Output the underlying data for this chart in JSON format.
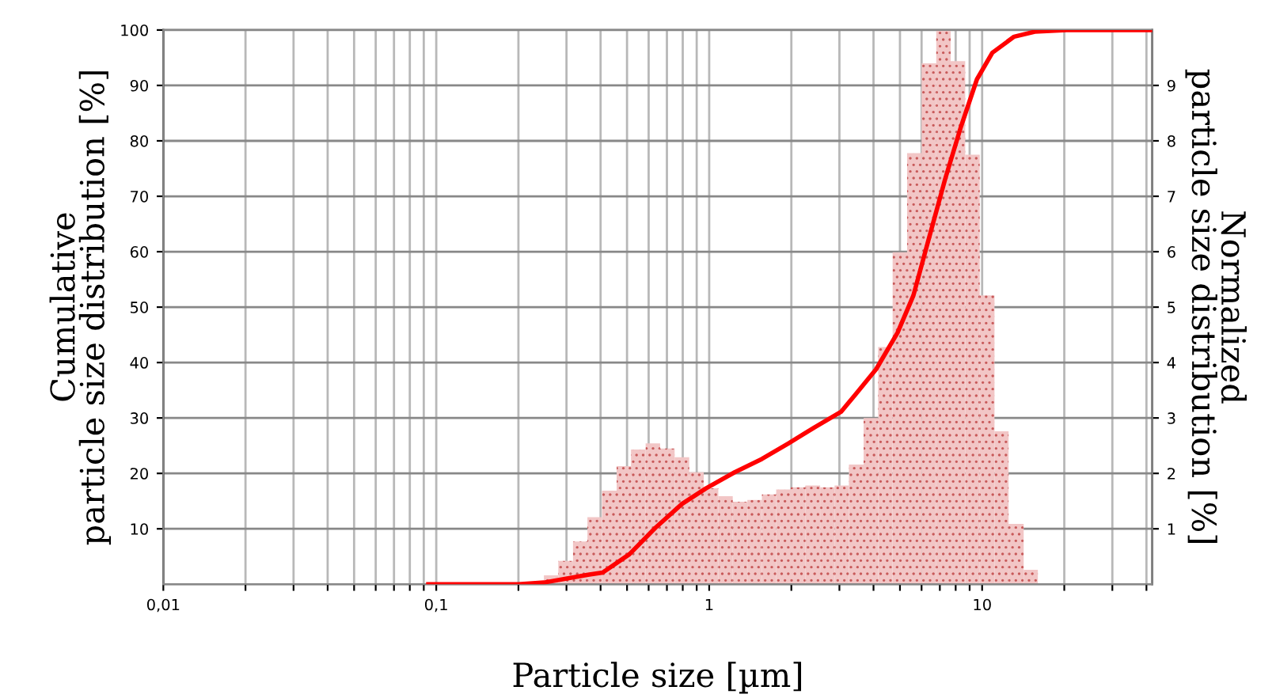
{
  "chart_data": {
    "type": "histogram",
    "xlabel": "Particle size [µm]",
    "ylabel": "Cumulative\nparticle size distribution [%]",
    "y2label": "Normalized\nparticle size distribution [%]",
    "log": "x",
    "xlim": [
      0.01,
      42
    ],
    "xticks": [
      {
        "value": 0.01,
        "label": "0,01"
      },
      {
        "value": 0.02,
        "label": null
      },
      {
        "value": 0.03,
        "label": null
      },
      {
        "value": 0.04,
        "label": null
      },
      {
        "value": 0.05,
        "label": null
      },
      {
        "value": 0.06,
        "label": null
      },
      {
        "value": 0.07,
        "label": null
      },
      {
        "value": 0.08,
        "label": null
      },
      {
        "value": 0.09,
        "label": null
      },
      {
        "value": 0.1,
        "label": "0,1"
      },
      {
        "value": 0.2,
        "label": null
      },
      {
        "value": 0.3,
        "label": null
      },
      {
        "value": 0.4,
        "label": null
      },
      {
        "value": 0.5,
        "label": null
      },
      {
        "value": 0.6,
        "label": null
      },
      {
        "value": 0.7,
        "label": null
      },
      {
        "value": 0.8,
        "label": null
      },
      {
        "value": 0.9,
        "label": null
      },
      1,
      {
        "value": 2,
        "label": null
      },
      {
        "value": 3,
        "label": null
      },
      {
        "value": 4,
        "label": null
      },
      {
        "value": 5,
        "label": null
      },
      {
        "value": 6,
        "label": null
      },
      {
        "value": 7,
        "label": null
      },
      {
        "value": 8,
        "label": null
      },
      {
        "value": 9,
        "label": null
      },
      10,
      {
        "value": 20,
        "label": null
      },
      {
        "value": 30,
        "label": null
      },
      {
        "value": 40,
        "label": null
      }
    ],
    "ylim": [
      0,
      100
    ],
    "yticks": [
      10,
      20,
      30,
      40,
      50,
      60,
      70,
      80,
      90,
      100
    ],
    "y2lim": [
      0,
      10
    ],
    "y2ticks": [
      1,
      2,
      3,
      4,
      5,
      6,
      7,
      8,
      9
    ],
    "grid": true,
    "series": [
      {
        "type": "histogram",
        "axis": "y2",
        "color": "#f2c6c6",
        "bins": [
          0.248,
          0.28,
          0.317,
          0.358,
          0.405,
          0.458,
          0.517,
          0.585,
          0.661,
          0.747,
          0.845,
          0.955,
          1.08,
          1.22,
          1.38,
          1.56,
          1.76,
          1.99,
          2.25,
          2.55,
          2.88,
          3.25,
          3.68,
          4.16,
          4.7,
          5.31,
          6.0,
          6.79,
          7.67,
          8.67,
          9.8,
          11.1,
          12.5,
          14.2,
          16.0
        ],
        "values": [
          0.16,
          0.42,
          0.77,
          1.21,
          1.69,
          2.13,
          2.43,
          2.54,
          2.45,
          2.29,
          2.02,
          1.73,
          1.59,
          1.49,
          1.52,
          1.62,
          1.71,
          1.75,
          1.78,
          1.75,
          1.78,
          2.16,
          3.0,
          4.28,
          5.99,
          7.78,
          9.4,
          10.0,
          9.44,
          7.75,
          5.21,
          2.76,
          1.09,
          0.26
        ]
      },
      {
        "type": "line",
        "axis": "y",
        "color": "#ff0000",
        "x": [
          0.0935,
          0.2,
          0.248,
          0.36,
          0.407,
          0.51,
          0.636,
          0.796,
          0.973,
          1.24,
          1.56,
          1.95,
          2.43,
          3.04,
          3.43,
          4.09,
          4.9,
          5.6,
          6.4,
          7.32,
          8.37,
          9.57,
          10.9,
          13.1,
          15.6,
          20.4,
          42
        ],
        "values": [
          0,
          0,
          0.3,
          1.7,
          2.1,
          5.4,
          10.2,
          14.5,
          17.3,
          20.2,
          22.6,
          25.4,
          28.3,
          31.1,
          34.2,
          38.8,
          45.4,
          52.1,
          62.6,
          73.1,
          82.6,
          91.1,
          95.9,
          98.8,
          99.7,
          100,
          100
        ]
      }
    ]
  }
}
